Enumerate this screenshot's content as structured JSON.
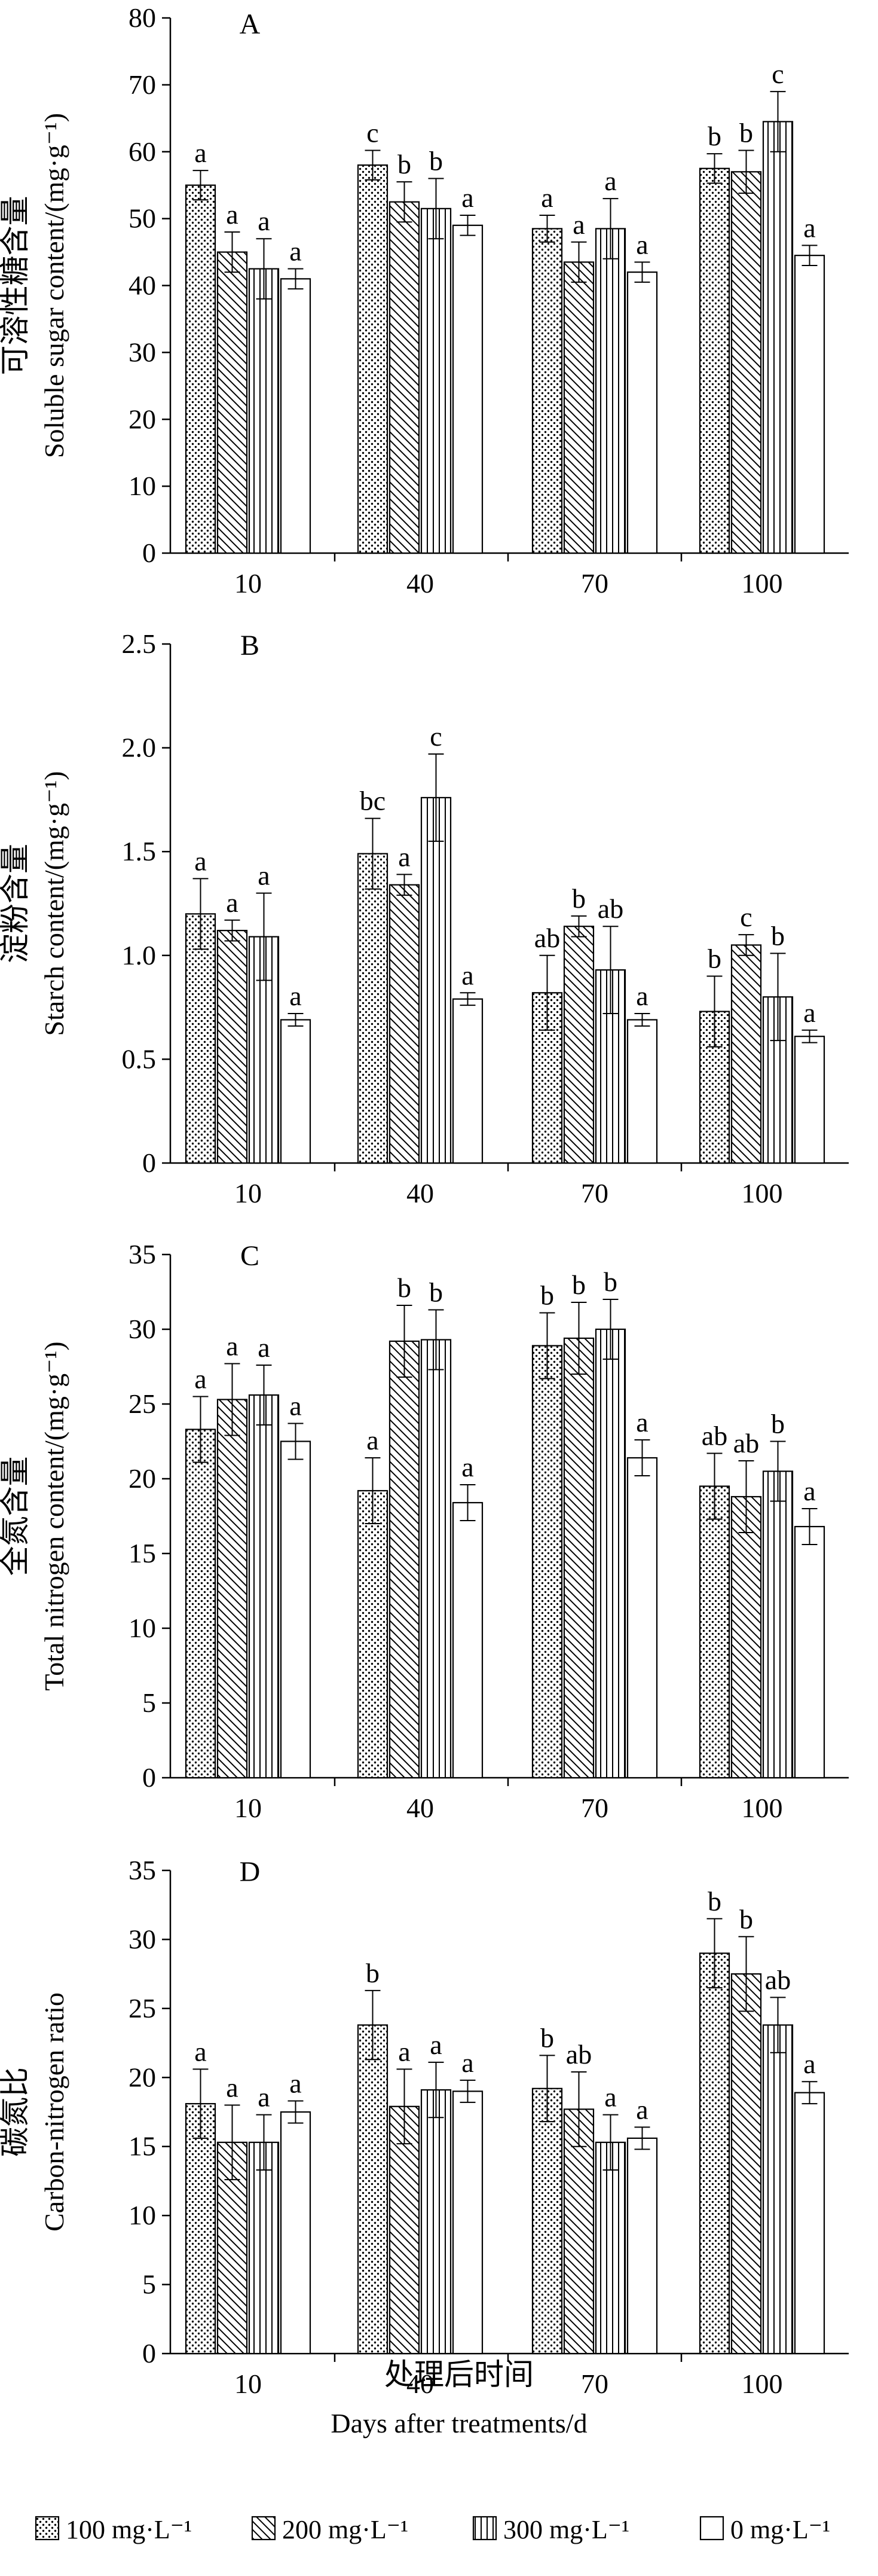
{
  "legend": [
    {
      "label": "100 mg·L⁻¹",
      "pattern": "dots"
    },
    {
      "label": "200 mg·L⁻¹",
      "pattern": "diag"
    },
    {
      "label": "300 mg·L⁻¹",
      "pattern": "vert"
    },
    {
      "label": "0 mg·L⁻¹",
      "pattern": "none"
    }
  ],
  "xlabel_cn": "处理后时间",
  "xlabel_en": "Days after treatments/d",
  "chart_data": [
    {
      "type": "bar",
      "panel": "A",
      "ylabel_cn": "可溶性糖含量",
      "ylabel_en": "Soluble sugar content/(mg·g⁻¹)",
      "categories": [
        "10",
        "40",
        "70",
        "100"
      ],
      "ylim": [
        0,
        80
      ],
      "yticks": [
        "0",
        "10",
        "20",
        "30",
        "40",
        "50",
        "60",
        "70",
        "80"
      ],
      "series": [
        {
          "name": "100 mg·L⁻¹",
          "values": [
            55,
            58,
            48.5,
            57.5
          ],
          "errors": [
            2.2,
            2.2,
            2.0,
            2.2
          ],
          "letters": [
            "a",
            "c",
            "a",
            "b"
          ]
        },
        {
          "name": "200 mg·L⁻¹",
          "values": [
            45,
            52.5,
            43.5,
            57
          ],
          "errors": [
            3.0,
            3.0,
            3.0,
            3.2
          ],
          "letters": [
            "a",
            "b",
            "a",
            "b"
          ]
        },
        {
          "name": "300 mg·L⁻¹",
          "values": [
            42.5,
            51.5,
            48.5,
            64.5
          ],
          "errors": [
            4.5,
            4.5,
            4.5,
            4.5
          ],
          "letters": [
            "a",
            "b",
            "a",
            "c"
          ]
        },
        {
          "name": "0 mg·L⁻¹",
          "values": [
            41,
            49,
            42,
            44.5
          ],
          "errors": [
            1.5,
            1.5,
            1.5,
            1.5
          ],
          "letters": [
            "a",
            "a",
            "a",
            "a"
          ]
        }
      ]
    },
    {
      "type": "bar",
      "panel": "B",
      "ylabel_cn": "淀粉含量",
      "ylabel_en": "Starch content/(mg·g⁻¹)",
      "categories": [
        "10",
        "40",
        "70",
        "100"
      ],
      "ylim": [
        0,
        2.5
      ],
      "yticks": [
        "0",
        "0.5",
        "1.0",
        "1.5",
        "2.0",
        "2.5"
      ],
      "series": [
        {
          "name": "100 mg·L⁻¹",
          "values": [
            1.2,
            1.49,
            0.82,
            0.73
          ],
          "errors": [
            0.17,
            0.17,
            0.18,
            0.17
          ],
          "letters": [
            "a",
            "bc",
            "ab",
            "b"
          ]
        },
        {
          "name": "200 mg·L⁻¹",
          "values": [
            1.12,
            1.34,
            1.14,
            1.05
          ],
          "errors": [
            0.05,
            0.05,
            0.05,
            0.05
          ],
          "letters": [
            "a",
            "a",
            "b",
            "c"
          ]
        },
        {
          "name": "300 mg·L⁻¹",
          "values": [
            1.09,
            1.76,
            0.93,
            0.8
          ],
          "errors": [
            0.21,
            0.21,
            0.21,
            0.21
          ],
          "letters": [
            "a",
            "c",
            "ab",
            "b"
          ]
        },
        {
          "name": "0 mg·L⁻¹",
          "values": [
            0.69,
            0.79,
            0.69,
            0.61
          ],
          "errors": [
            0.03,
            0.03,
            0.03,
            0.03
          ],
          "letters": [
            "a",
            "a",
            "a",
            "a"
          ]
        }
      ]
    },
    {
      "type": "bar",
      "panel": "C",
      "ylabel_cn": "全氮含量",
      "ylabel_en": "Total nitrogen content/(mg·g⁻¹)",
      "categories": [
        "10",
        "40",
        "70",
        "100"
      ],
      "ylim": [
        0,
        35
      ],
      "yticks": [
        "0",
        "5",
        "10",
        "15",
        "20",
        "25",
        "30",
        "35"
      ],
      "series": [
        {
          "name": "100 mg·L⁻¹",
          "values": [
            23.3,
            19.2,
            28.9,
            19.5
          ],
          "errors": [
            2.2,
            2.2,
            2.2,
            2.2
          ],
          "letters": [
            "a",
            "a",
            "b",
            "ab"
          ]
        },
        {
          "name": "200 mg·L⁻¹",
          "values": [
            25.3,
            29.2,
            29.4,
            18.8
          ],
          "errors": [
            2.4,
            2.4,
            2.4,
            2.4
          ],
          "letters": [
            "a",
            "b",
            "b",
            "ab"
          ]
        },
        {
          "name": "300 mg·L⁻¹",
          "values": [
            25.6,
            29.3,
            30,
            20.5
          ],
          "errors": [
            2.0,
            2.0,
            2.0,
            2.0
          ],
          "letters": [
            "a",
            "b",
            "b",
            "b"
          ]
        },
        {
          "name": "0 mg·L⁻¹",
          "values": [
            22.5,
            18.4,
            21.4,
            16.8
          ],
          "errors": [
            1.2,
            1.2,
            1.2,
            1.2
          ],
          "letters": [
            "a",
            "a",
            "a",
            "a"
          ]
        }
      ]
    },
    {
      "type": "bar",
      "panel": "D",
      "ylabel_cn": "碳氮比",
      "ylabel_en": "Carbon-nitrogen ratio",
      "categories": [
        "10",
        "40",
        "70",
        "100"
      ],
      "ylim": [
        0,
        35
      ],
      "yticks": [
        "0",
        "5",
        "10",
        "15",
        "20",
        "25",
        "30",
        "35"
      ],
      "series": [
        {
          "name": "100 mg·L⁻¹",
          "values": [
            18.1,
            23.8,
            19.2,
            29
          ],
          "errors": [
            2.5,
            2.5,
            2.4,
            2.5
          ],
          "letters": [
            "a",
            "b",
            "b",
            "b"
          ]
        },
        {
          "name": "200 mg·L⁻¹",
          "values": [
            15.3,
            17.9,
            17.7,
            27.5
          ],
          "errors": [
            2.7,
            2.7,
            2.7,
            2.7
          ],
          "letters": [
            "a",
            "a",
            "ab",
            "b"
          ]
        },
        {
          "name": "300 mg·L⁻¹",
          "values": [
            15.3,
            19.1,
            15.3,
            23.8
          ],
          "errors": [
            2.0,
            2.0,
            2.0,
            2.0
          ],
          "letters": [
            "a",
            "a",
            "a",
            "ab"
          ]
        },
        {
          "name": "0 mg·L⁻¹",
          "values": [
            17.5,
            19,
            15.6,
            18.9
          ],
          "errors": [
            0.8,
            0.8,
            0.8,
            0.8
          ],
          "letters": [
            "a",
            "a",
            "a",
            "a"
          ]
        }
      ]
    }
  ]
}
